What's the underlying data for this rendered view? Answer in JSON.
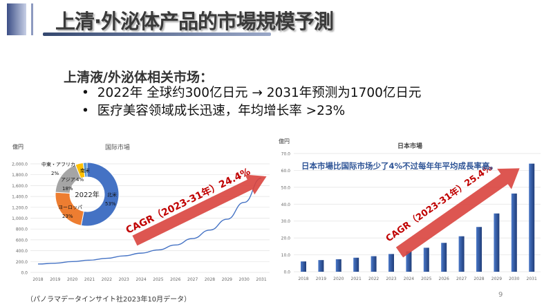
{
  "header": {
    "title": "上清·外泌体产品的市場規模予測"
  },
  "content": {
    "subtitle": "上清液/外泌体相关市场：",
    "bullets": [
      "2022年 全球约300亿日元 → 2031年预测为1700亿日元",
      "医疗美容领域成长迅速，年均增长率 >23%"
    ]
  },
  "footer": {
    "source": "（パノラマデータインサイト社2023年10月データ）",
    "page": "9"
  },
  "chart_data": [
    {
      "type": "line",
      "title": "国际市場",
      "ylabel": "億円",
      "ylim": [
        0,
        2000
      ],
      "yticks": [
        "0.0",
        "200.0",
        "400.0",
        "600.0",
        "800.0",
        "1,000.0",
        "1,200.0",
        "1,400.0",
        "1,600.0",
        "1,800.0",
        "2,000.0"
      ],
      "categories": [
        "2018",
        "2019",
        "2020",
        "2021",
        "2022",
        "2023",
        "2024",
        "2025",
        "2026",
        "2027",
        "2028",
        "2029",
        "2030",
        "2031"
      ],
      "values": [
        155,
        170,
        200,
        225,
        260,
        305,
        355,
        415,
        505,
        625,
        780,
        980,
        1290,
        1740
      ],
      "color": "#4472c4",
      "annotation": "CAGR（2023-31年）24.4%"
    },
    {
      "type": "pie",
      "title": "2022年",
      "slices": [
        {
          "label": "北米",
          "value": 53,
          "text": "53%",
          "color": "#4472c4"
        },
        {
          "label": "ヨーロッパ",
          "value": 23,
          "text": "23%",
          "color": "#ed7d31"
        },
        {
          "label": "アジア",
          "value": 18,
          "text": "18%",
          "color": "#a5a5a5"
        },
        {
          "label": "南米",
          "value": 4,
          "text": "4%",
          "color": "#ffc000"
        },
        {
          "label": "中東・アフリカ",
          "value": 2,
          "text": "2%",
          "color": "#5b9bd5"
        }
      ]
    },
    {
      "type": "bar",
      "title": "日本市場",
      "ylabel": "億円",
      "ylim": [
        0,
        70
      ],
      "yticks": [
        "0.0",
        "10.0",
        "20.0",
        "30.0",
        "40.0",
        "50.0",
        "60.0",
        "70.0"
      ],
      "categories": [
        "2018",
        "2019",
        "2020",
        "2021",
        "2022",
        "2023",
        "2024",
        "2025",
        "2026",
        "2027",
        "2028",
        "2029",
        "2030",
        "2031"
      ],
      "values": [
        6.1,
        6.9,
        7.4,
        8.3,
        9.2,
        10.5,
        12.1,
        14.2,
        17.1,
        21.0,
        26.5,
        34.5,
        46.3,
        64.0
      ],
      "color": "#2f5597",
      "annotation": "CAGR（2023-31年）25.4%",
      "note": "日本市場比国际市场少了4%不过每年年平均成長率高。"
    }
  ]
}
